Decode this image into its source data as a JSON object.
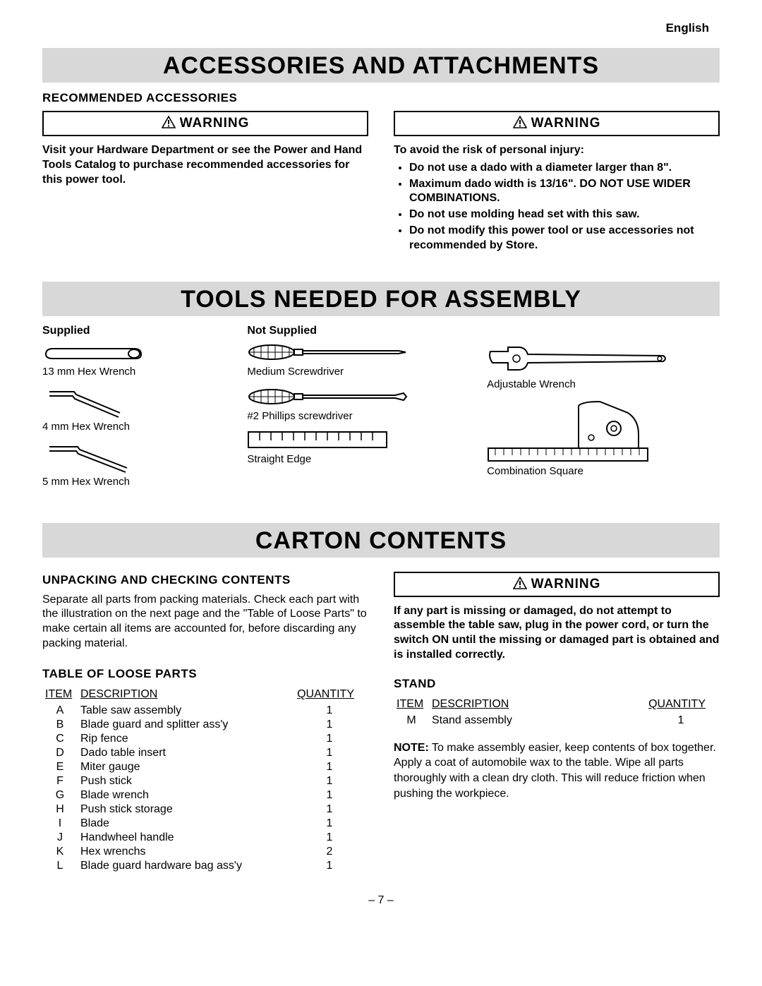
{
  "lang_label": "English",
  "section1_title": "ACCESSORIES AND ATTACHMENTS",
  "recommended_heading": "RECOMMENDED ACCESSORIES",
  "warning_label": "WARNING",
  "warn1_text": "Visit your Hardware Department or see the Power and Hand Tools Catalog to purchase recommended accessories for this power tool.",
  "warn2_intro": "To avoid the risk of personal injury:",
  "warn2_bullets": [
    "Do not use a dado with a diameter larger than 8\".",
    "Maximum dado width is 13/16\".  DO NOT USE WIDER COMBINATIONS.",
    "Do not use molding head set with this saw.",
    "Do not modify this power tool or use accessories not recommended by Store."
  ],
  "section2_title": "TOOLS NEEDED FOR ASSEMBLY",
  "tools": {
    "supplied_label": "Supplied",
    "not_supplied_label": "Not Supplied",
    "supplied": [
      {
        "name": "13 mm Hex Wrench"
      },
      {
        "name": "4 mm Hex Wrench"
      },
      {
        "name": "5 mm Hex Wrench"
      }
    ],
    "notsupplied_col1": [
      {
        "name": "Medium Screwdriver"
      },
      {
        "name": "#2 Phillips screwdriver"
      },
      {
        "name": "Straight Edge"
      }
    ],
    "notsupplied_col2": [
      {
        "name": "Adjustable Wrench"
      },
      {
        "name": "Combination Square"
      }
    ]
  },
  "section3_title": "CARTON CONTENTS",
  "unpack_heading": "UNPACKING AND CHECKING CONTENTS",
  "unpack_text": "Separate all parts from packing materials. Check each part with the illustration on the next page and the \"Table of Loose Parts\" to make certain all items are accounted for, before discarding any packing material.",
  "table_heading": "TABLE OF LOOSE PARTS",
  "stand_heading": "STAND",
  "table_headers": {
    "item": "ITEM",
    "desc": "DESCRIPTION",
    "qty": "QUANTITY"
  },
  "loose_parts": [
    {
      "item": "A",
      "desc": "Table saw assembly",
      "qty": "1"
    },
    {
      "item": "B",
      "desc": "Blade guard and splitter ass'y",
      "qty": "1"
    },
    {
      "item": "C",
      "desc": "Rip fence",
      "qty": "1"
    },
    {
      "item": "D",
      "desc": "Dado table insert",
      "qty": "1"
    },
    {
      "item": "E",
      "desc": "Miter gauge",
      "qty": "1"
    },
    {
      "item": "F",
      "desc": "Push stick",
      "qty": "1"
    },
    {
      "item": "G",
      "desc": "Blade wrench",
      "qty": "1"
    },
    {
      "item": "H",
      "desc": "Push stick storage",
      "qty": "1"
    },
    {
      "item": "I",
      "desc": "Blade",
      "qty": "1"
    },
    {
      "item": "J",
      "desc": "Handwheel handle",
      "qty": "1"
    },
    {
      "item": "K",
      "desc": "Hex wrenchs",
      "qty": "2"
    },
    {
      "item": "L",
      "desc": "Blade guard hardware bag ass'y",
      "qty": "1"
    }
  ],
  "stand_parts": [
    {
      "item": "M",
      "desc": "Stand assembly",
      "qty": "1"
    }
  ],
  "warn3_text": "If any part is missing or damaged, do not attempt to assemble the table saw, plug in the power cord, or turn the switch ON until the missing or damaged part is obtained and is installed correctly.",
  "note_label": "NOTE:",
  "note_text": " To make assembly easier, keep contents of box together. Apply a coat of automobile wax to the table. Wipe all parts thoroughly with a clean dry cloth. This will reduce friction when pushing the workpiece.",
  "page_number": "–  7  –",
  "colors": {
    "section_bg": "#d8d8d8",
    "text": "#000000",
    "page_bg": "#ffffff"
  }
}
